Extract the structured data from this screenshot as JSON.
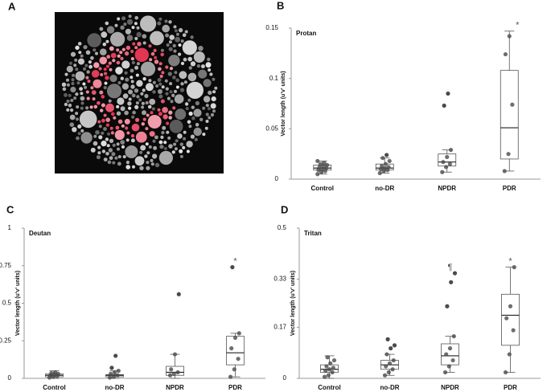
{
  "image_panel": {
    "label": "A"
  },
  "chart_data": [
    {
      "type": "box",
      "label": "B",
      "title": "Protan",
      "y_label": "Vector length (u'v' units)",
      "categories": [
        "Control",
        "no-DR",
        "NPDR",
        "PDR"
      ],
      "ylim": [
        0,
        0.15
      ],
      "yticks": [
        0,
        0.05,
        0.1,
        0.15
      ],
      "grid": false,
      "box_color": "#555555",
      "point_color": "#4a4a4a",
      "boxes": [
        {
          "min": 0.005,
          "q1": 0.009,
          "median": 0.011,
          "q3": 0.014,
          "max": 0.018,
          "points": [
            0.005,
            0.007,
            0.008,
            0.009,
            0.01,
            0.011,
            0.012,
            0.013,
            0.014,
            0.015,
            0.016,
            0.018
          ]
        },
        {
          "min": 0.006,
          "q1": 0.009,
          "median": 0.011,
          "q3": 0.015,
          "max": 0.021,
          "points": [
            0.006,
            0.008,
            0.009,
            0.01,
            0.011,
            0.012,
            0.013,
            0.015,
            0.018,
            0.021,
            0.024
          ]
        },
        {
          "min": 0.007,
          "q1": 0.013,
          "median": 0.017,
          "q3": 0.025,
          "max": 0.029,
          "points": [
            0.007,
            0.012,
            0.015,
            0.017,
            0.022,
            0.029,
            0.073,
            0.085
          ]
        },
        {
          "min": 0.008,
          "q1": 0.02,
          "median": 0.051,
          "q3": 0.108,
          "max": 0.147,
          "points": [
            0.008,
            0.025,
            0.074,
            0.124,
            0.142
          ]
        }
      ],
      "annotations": [
        null,
        null,
        null,
        "*"
      ]
    },
    {
      "type": "box",
      "label": "C",
      "title": "Deutan",
      "y_label": "Vector length (u'v' units)",
      "categories": [
        "Control",
        "no-DR",
        "NPDR",
        "PDR"
      ],
      "ylim": [
        0,
        1
      ],
      "yticks": [
        0,
        0.25,
        0.5,
        0.75,
        1
      ],
      "grid": false,
      "box_color": "#555555",
      "point_color": "#4a4a4a",
      "boxes": [
        {
          "min": 0,
          "q1": 0.01,
          "median": 0.02,
          "q3": 0.03,
          "max": 0.05,
          "points": [
            0.005,
            0.01,
            0.015,
            0.02,
            0.025,
            0.03,
            0.035,
            0.04
          ]
        },
        {
          "min": 0,
          "q1": 0.01,
          "median": 0.02,
          "q3": 0.025,
          "max": 0.05,
          "points": [
            0.005,
            0.01,
            0.02,
            0.03,
            0.04,
            0.05,
            0.07,
            0.15
          ]
        },
        {
          "min": 0,
          "q1": 0.02,
          "median": 0.04,
          "q3": 0.08,
          "max": 0.16,
          "points": [
            0.02,
            0.03,
            0.04,
            0.06,
            0.16,
            0.56
          ]
        },
        {
          "min": 0.01,
          "q1": 0.09,
          "median": 0.17,
          "q3": 0.28,
          "max": 0.3,
          "points": [
            0.01,
            0.06,
            0.13,
            0.2,
            0.27,
            0.3,
            0.74
          ]
        }
      ],
      "annotations": [
        null,
        null,
        null,
        "*"
      ]
    },
    {
      "type": "box",
      "label": "D",
      "title": "Tritan",
      "y_label": "Vector length (u'v' units)",
      "categories": [
        "Control",
        "no-DR",
        "NPDR",
        "PDR"
      ],
      "ylim": [
        0,
        0.5
      ],
      "yticks": [
        0,
        0.17,
        0.33,
        0.5
      ],
      "grid": false,
      "box_color": "#555555",
      "point_color": "#4a4a4a",
      "boxes": [
        {
          "min": 0,
          "q1": 0.02,
          "median": 0.03,
          "q3": 0.045,
          "max": 0.075,
          "points": [
            0.005,
            0.01,
            0.02,
            0.025,
            0.03,
            0.035,
            0.04,
            0.05,
            0.06,
            0.07
          ]
        },
        {
          "min": 0.01,
          "q1": 0.03,
          "median": 0.045,
          "q3": 0.06,
          "max": 0.08,
          "points": [
            0.01,
            0.02,
            0.03,
            0.04,
            0.05,
            0.06,
            0.08,
            0.1,
            0.11,
            0.13
          ]
        },
        {
          "min": 0.02,
          "q1": 0.045,
          "median": 0.075,
          "q3": 0.115,
          "max": 0.14,
          "points": [
            0.02,
            0.04,
            0.06,
            0.08,
            0.1,
            0.14,
            0.24,
            0.32,
            0.35
          ]
        },
        {
          "min": 0.02,
          "q1": 0.11,
          "median": 0.21,
          "q3": 0.28,
          "max": 0.37,
          "points": [
            0.02,
            0.08,
            0.16,
            0.2,
            0.24,
            0.37
          ]
        }
      ],
      "annotations": [
        null,
        null,
        "¶",
        "*"
      ]
    }
  ]
}
